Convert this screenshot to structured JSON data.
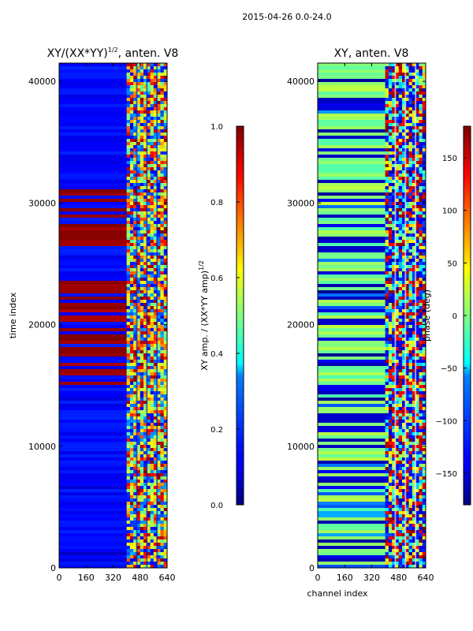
{
  "figure": {
    "suptitle": "2015-04-26 0.0-24.0"
  },
  "chart_data": [
    {
      "type": "heatmap",
      "title_main": "XY/(XX*YY)",
      "title_sup": "1/2",
      "title_rest": ", anten. V8",
      "xlabel": "",
      "ylabel": "time index",
      "xlim": [
        0,
        640
      ],
      "ylim": [
        0,
        41500
      ],
      "xticks": [
        0,
        160,
        320,
        480,
        640
      ],
      "yticks": [
        0,
        10000,
        20000,
        30000,
        40000
      ],
      "data_region_x": [
        400,
        640
      ],
      "grid": false,
      "colorbar": {
        "label_main": "XY amp. / (XX*YY amp)",
        "label_sup": "1/2",
        "range": [
          0.0,
          1.0
        ],
        "ticks": [
          "0.0",
          "0.2",
          "0.4",
          "0.6",
          "0.8",
          "1.0"
        ],
        "colormap": "jet"
      }
    },
    {
      "type": "heatmap",
      "title_main": "XY, anten. V8",
      "xlabel": "channel index",
      "ylabel": "",
      "xlim": [
        0,
        640
      ],
      "ylim": [
        0,
        41500
      ],
      "xticks": [
        0,
        160,
        320,
        480,
        640
      ],
      "yticks": [
        0,
        10000,
        20000,
        30000,
        40000
      ],
      "data_region_x": [
        400,
        640
      ],
      "grid": false,
      "colorbar": {
        "label_main": "phase (deg)",
        "range": [
          -180,
          180
        ],
        "ticks": [
          "−150",
          "−100",
          "−50",
          "0",
          "50",
          "100",
          "150"
        ],
        "colormap": "jet"
      }
    }
  ]
}
